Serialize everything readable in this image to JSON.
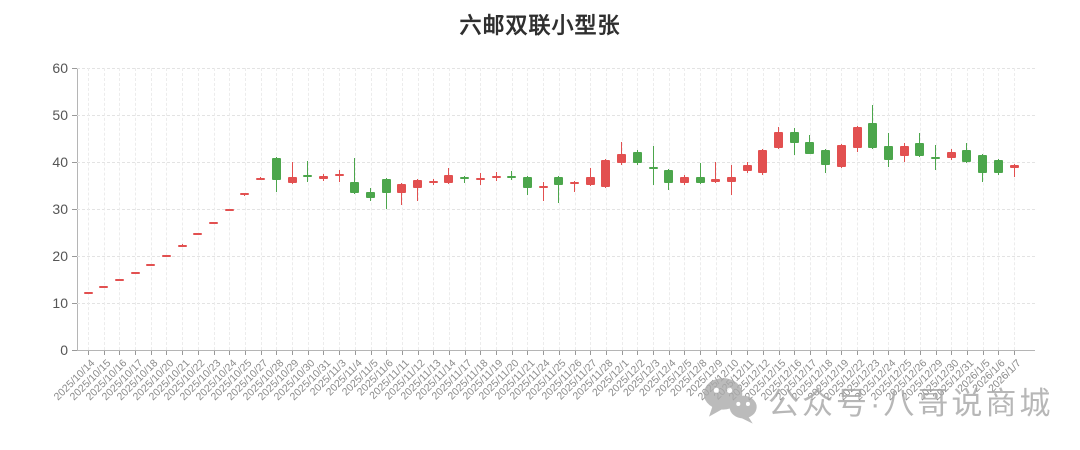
{
  "title": "六邮双联小型张",
  "watermark": {
    "text": "公众号·八哥说商城",
    "icon": "wechat-icon",
    "color": "#a6a6a6"
  },
  "chart_data": {
    "type": "candlestick",
    "title": "六邮双联小型张",
    "xlabel": "",
    "ylabel": "",
    "ylim": [
      0,
      60
    ],
    "yticks": [
      0,
      10,
      20,
      30,
      40,
      50,
      60
    ],
    "grid": true,
    "legend": "none",
    "up_color": "#e25050",
    "down_color": "#4ca64c",
    "axis_color": "#b5b5b5",
    "ohlc_format": [
      "open",
      "close",
      "low",
      "high"
    ],
    "categories": [
      "2025/10/14",
      "2025/10/15",
      "2025/10/16",
      "2025/10/17",
      "2025/10/18",
      "2025/10/20",
      "2025/10/21",
      "2025/10/22",
      "2025/10/23",
      "2025/10/24",
      "2025/10/25",
      "2025/10/27",
      "2025/10/28",
      "2025/10/29",
      "2025/10/30",
      "2025/10/31",
      "2025/11/3",
      "2025/11/4",
      "2025/11/5",
      "2025/11/6",
      "2025/11/11",
      "2025/11/12",
      "2025/11/13",
      "2025/11/14",
      "2025/11/17",
      "2025/11/18",
      "2025/11/19",
      "2025/11/20",
      "2025/11/21",
      "2025/11/24",
      "2025/11/25",
      "2025/11/26",
      "2025/11/27",
      "2025/11/28",
      "2025/12/1",
      "2025/12/2",
      "2025/12/3",
      "2025/12/4",
      "2025/12/5",
      "2025/12/8",
      "2025/12/9",
      "2025/12/10",
      "2025/12/11",
      "2025/12/12",
      "2025/12/15",
      "2025/12/16",
      "2025/12/17",
      "2025/12/18",
      "2025/12/19",
      "2025/12/22",
      "2025/12/23",
      "2025/12/24",
      "2025/12/25",
      "2025/12/26",
      "2025/12/29",
      "2025/12/30",
      "2025/12/31",
      "2026/1/5",
      "2026/1/6",
      "2026/1/7"
    ],
    "ohlc": [
      [
        12.25,
        12.35,
        12.2,
        12.4
      ],
      [
        13.45,
        13.6,
        13.4,
        13.65
      ],
      [
        14.9,
        15.05,
        14.85,
        15.1
      ],
      [
        16.4,
        16.55,
        16.35,
        16.6
      ],
      [
        18.05,
        18.2,
        18.0,
        18.25
      ],
      [
        20.0,
        20.2,
        19.95,
        20.25
      ],
      [
        22.2,
        22.4,
        22.15,
        22.45
      ],
      [
        24.5,
        24.8,
        24.45,
        24.85
      ],
      [
        26.9,
        27.2,
        26.85,
        27.25
      ],
      [
        29.7,
        30.0,
        29.65,
        30.05
      ],
      [
        32.9,
        33.3,
        32.85,
        33.35
      ],
      [
        36.3,
        36.7,
        36.25,
        36.75
      ],
      [
        40.8,
        36.2,
        33.6,
        41.0
      ],
      [
        35.5,
        36.8,
        35.3,
        40.0
      ],
      [
        37.3,
        36.8,
        35.7,
        40.3
      ],
      [
        36.4,
        37.0,
        36.0,
        37.4
      ],
      [
        37.0,
        37.4,
        35.8,
        38.2
      ],
      [
        35.8,
        33.5,
        33.2,
        40.9
      ],
      [
        33.7,
        32.3,
        31.6,
        34.5
      ],
      [
        36.3,
        33.3,
        29.9,
        36.5
      ],
      [
        33.4,
        35.3,
        30.9,
        35.5
      ],
      [
        34.4,
        36.2,
        31.6,
        36.4
      ],
      [
        35.5,
        35.9,
        35.2,
        36.3
      ],
      [
        35.5,
        37.2,
        35.3,
        38.7
      ],
      [
        36.8,
        36.4,
        35.5,
        37.0
      ],
      [
        36.3,
        36.6,
        35.0,
        37.6
      ],
      [
        36.7,
        37.0,
        35.9,
        37.8
      ],
      [
        37.0,
        36.8,
        36.2,
        38.0
      ],
      [
        36.9,
        34.4,
        33.0,
        37.1
      ],
      [
        34.5,
        34.8,
        31.6,
        35.8
      ],
      [
        36.9,
        35.0,
        31.2,
        37.1
      ],
      [
        35.3,
        35.8,
        33.7,
        36.0
      ],
      [
        35.0,
        36.9,
        34.8,
        38.7
      ],
      [
        34.7,
        40.4,
        34.5,
        40.6
      ],
      [
        39.7,
        41.8,
        39.3,
        44.3
      ],
      [
        42.2,
        39.7,
        39.4,
        42.5
      ],
      [
        39.0,
        38.5,
        35.1,
        43.3
      ],
      [
        38.3,
        35.5,
        34.0,
        38.5
      ],
      [
        35.5,
        36.9,
        35.2,
        37.2
      ],
      [
        36.9,
        35.5,
        35.3,
        39.7
      ],
      [
        35.8,
        36.3,
        35.5,
        40.0
      ],
      [
        35.8,
        36.9,
        33.0,
        39.4
      ],
      [
        38.0,
        39.4,
        37.7,
        39.9
      ],
      [
        37.6,
        42.6,
        37.2,
        42.8
      ],
      [
        42.9,
        46.4,
        42.7,
        47.5
      ],
      [
        46.3,
        44.0,
        41.5,
        47.3
      ],
      [
        44.3,
        41.8,
        41.6,
        45.7
      ],
      [
        42.6,
        39.4,
        37.6,
        42.8
      ],
      [
        39.0,
        43.6,
        38.8,
        43.8
      ],
      [
        42.9,
        47.5,
        42.2,
        47.6
      ],
      [
        48.2,
        42.9,
        42.7,
        52.1
      ],
      [
        43.3,
        40.4,
        39.0,
        46.1
      ],
      [
        41.2,
        43.3,
        40.0,
        44.0
      ],
      [
        44.0,
        41.2,
        41.0,
        46.1
      ],
      [
        41.0,
        40.8,
        38.3,
        43.6
      ],
      [
        40.8,
        42.2,
        40.5,
        42.8
      ],
      [
        42.6,
        40.0,
        39.8,
        44.0
      ],
      [
        41.5,
        37.6,
        35.8,
        41.8
      ],
      [
        40.4,
        37.6,
        37.3,
        40.6
      ],
      [
        38.7,
        39.4,
        36.9,
        39.5
      ]
    ]
  }
}
